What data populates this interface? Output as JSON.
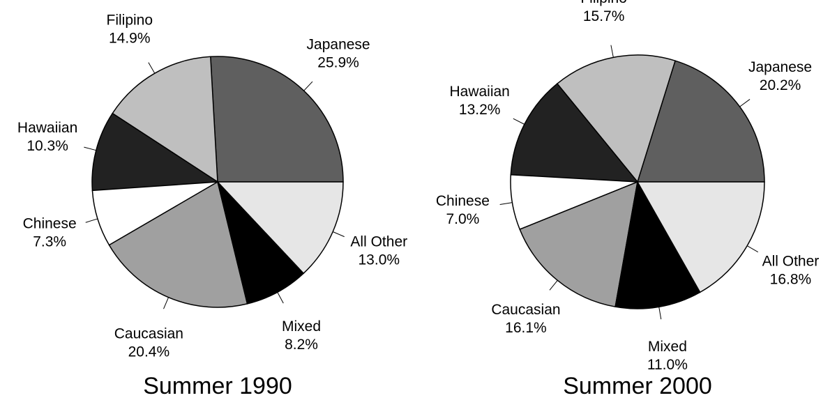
{
  "chart_data": [
    {
      "type": "pie",
      "title": "Summer 1990",
      "categories": [
        "Japanese",
        "Filipino",
        "Hawaiian",
        "Chinese",
        "Caucasian",
        "Mixed",
        "All Other"
      ],
      "values": [
        25.9,
        14.9,
        10.3,
        7.3,
        20.4,
        8.2,
        13.0
      ],
      "value_labels": [
        "25.9%",
        "14.9%",
        "10.3%",
        "7.3%",
        "20.4%",
        "8.2%",
        "13.0%"
      ],
      "colors": [
        "#5f5f5f",
        "#bfbfbf",
        "#222222",
        "#ffffff",
        "#a0a0a0",
        "#000000",
        "#e6e6e6"
      ]
    },
    {
      "type": "pie",
      "title": "Summer 2000",
      "categories": [
        "Japanese",
        "Filipino",
        "Hawaiian",
        "Chinese",
        "Caucasian",
        "Mixed",
        "All Other"
      ],
      "values": [
        20.2,
        15.7,
        13.2,
        7.0,
        16.1,
        11.0,
        16.8
      ],
      "value_labels": [
        "20.2%",
        "15.7%",
        "13.2%",
        "7.0%",
        "16.1%",
        "11.0%",
        "16.8%"
      ],
      "colors": [
        "#5f5f5f",
        "#bfbfbf",
        "#222222",
        "#ffffff",
        "#a0a0a0",
        "#000000",
        "#e6e6e6"
      ]
    }
  ]
}
